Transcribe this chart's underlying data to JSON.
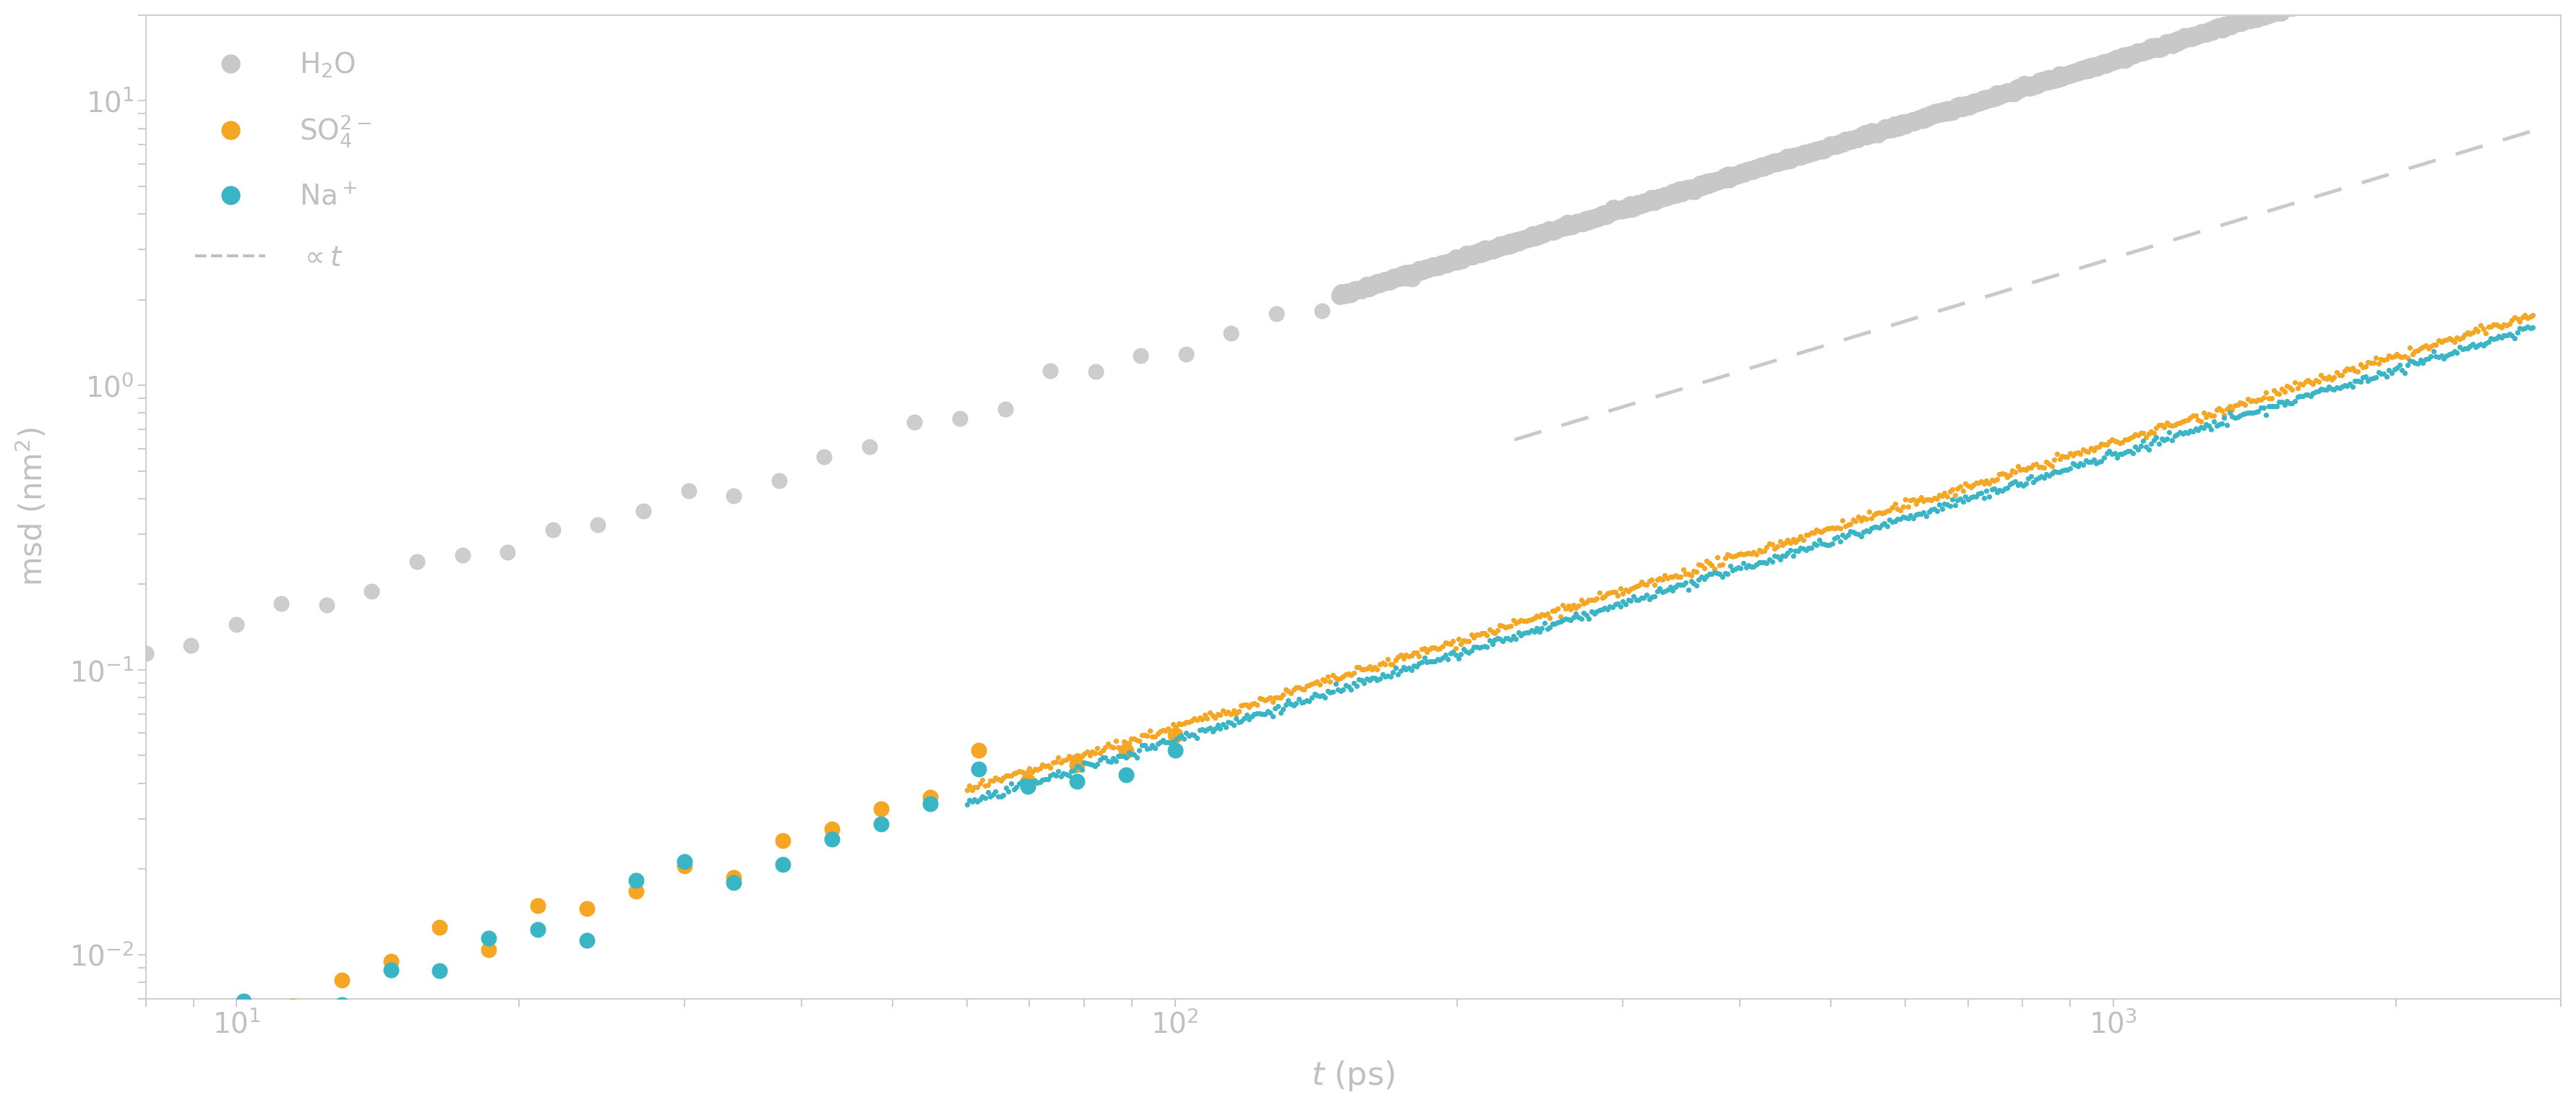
{
  "title": "",
  "xlabel": "$t$ (ps)",
  "ylabel": "msd (nm$^2$)",
  "x_min": 8,
  "x_max": 3000,
  "y_min": 0.007,
  "y_max": 20,
  "color_h2o": "#c8c8c8",
  "color_so4": "#f5a623",
  "color_na": "#3ab5c6",
  "color_ref": "#c0c0c0",
  "legend_labels": [
    "H$_2$O",
    "SO$_4^{2-}$",
    "Na$^+$",
    "$\\propto t$"
  ],
  "bg_color": "#ffffff",
  "tick_color": "#cccccc",
  "label_color": "#c0c0c0",
  "spine_color": "#d0d0d0",
  "font_size": 28,
  "legend_font_size": 28,
  "D_h2o": 0.0023,
  "D_so4": 0.000105,
  "D_na": 9.5e-05,
  "ref_slope": 0.0028,
  "ref_t_start": 230,
  "ref_t_end": 2800,
  "h2o_dot_t_start": 8,
  "h2o_dot_t_end": 200,
  "h2o_dot_n": 30,
  "h2o_line_t_start": 150,
  "h2o_line_t_end": 3000,
  "ion_dot_t_start": 8,
  "ion_dot_t_end": 100,
  "ion_dot_n": 22,
  "ion_dense_t_start": 60,
  "ion_dense_t_end": 2800,
  "ion_dense_n": 600
}
